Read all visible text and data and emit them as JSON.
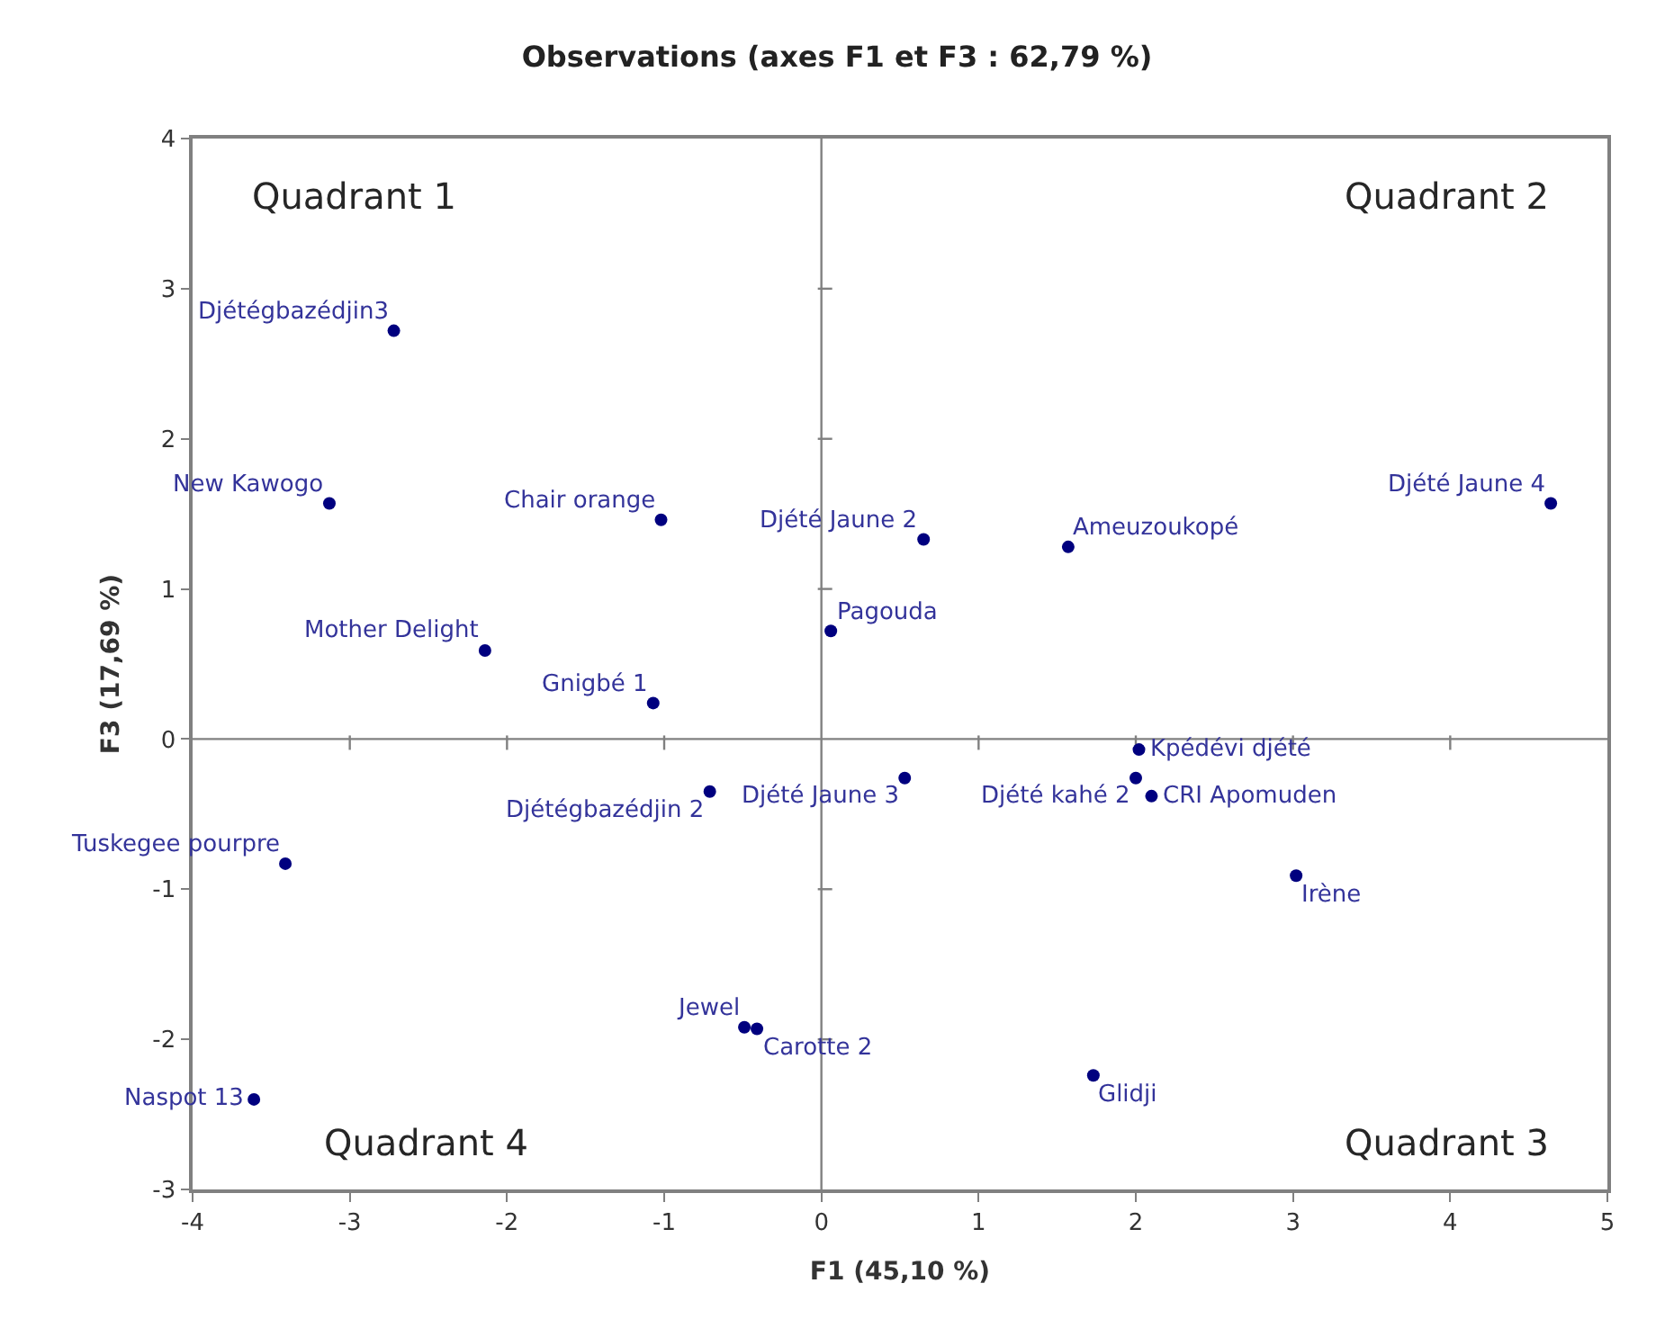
{
  "chart_data": {
    "type": "scatter",
    "title": "Observations (axes F1 et F3 : 62,79 %)",
    "xlabel": "F1 (45,10 %)",
    "ylabel": "F3 (17,69 %)",
    "x": [
      -2.72,
      -3.13,
      -1.02,
      -2.14,
      -1.07,
      0.06,
      0.65,
      1.57,
      4.64,
      0.53,
      2.02,
      2.0,
      2.1,
      3.02,
      1.73,
      -0.71,
      -3.41,
      -3.61,
      -0.49,
      -0.41
    ],
    "series": [
      {
        "color": "#00007f",
        "values": [
          2.72,
          1.57,
          1.46,
          0.59,
          0.24,
          0.72,
          1.33,
          1.28,
          1.57,
          -0.26,
          -0.07,
          -0.26,
          -0.38,
          -0.91,
          -2.24,
          -0.35,
          -0.83,
          -2.4,
          -1.92,
          -1.93
        ],
        "value_labels": [
          "Djétégbazédjin3",
          "New Kawogo",
          "Chair orange",
          "Mother Delight",
          "Gnigbé 1",
          "Pagouda",
          "Djété Jaune 2",
          "Ameuzoukopé",
          "Djété Jaune 4",
          "Djété Jaune 3",
          "Kpédévi djété",
          "Djété kahé 2",
          "CRI Apomuden",
          "Irène",
          "Glidji",
          "Djétégbazédjin 2",
          "Tuskegee pourpre",
          "Naspot 13",
          "Jewel",
          "Carotte 2"
        ]
      }
    ],
    "xlim": [
      -4,
      5
    ],
    "xticks": [
      -4,
      -3,
      -2,
      -1,
      0,
      1,
      2,
      3,
      4,
      5
    ],
    "ylim": [
      -3,
      4
    ],
    "yticks": [
      -3,
      -2,
      -1,
      0,
      1,
      2,
      3,
      4
    ],
    "marker": "circle",
    "grid": false,
    "ref_lines": [
      {
        "axis": "x",
        "value": 0,
        "color": "#808080"
      },
      {
        "axis": "y",
        "value": 0,
        "color": "#808080"
      }
    ],
    "annotations": [
      "Quadrant 1",
      "Quadrant 2",
      "Quadrant 3",
      "Quadrant 4"
    ]
  }
}
